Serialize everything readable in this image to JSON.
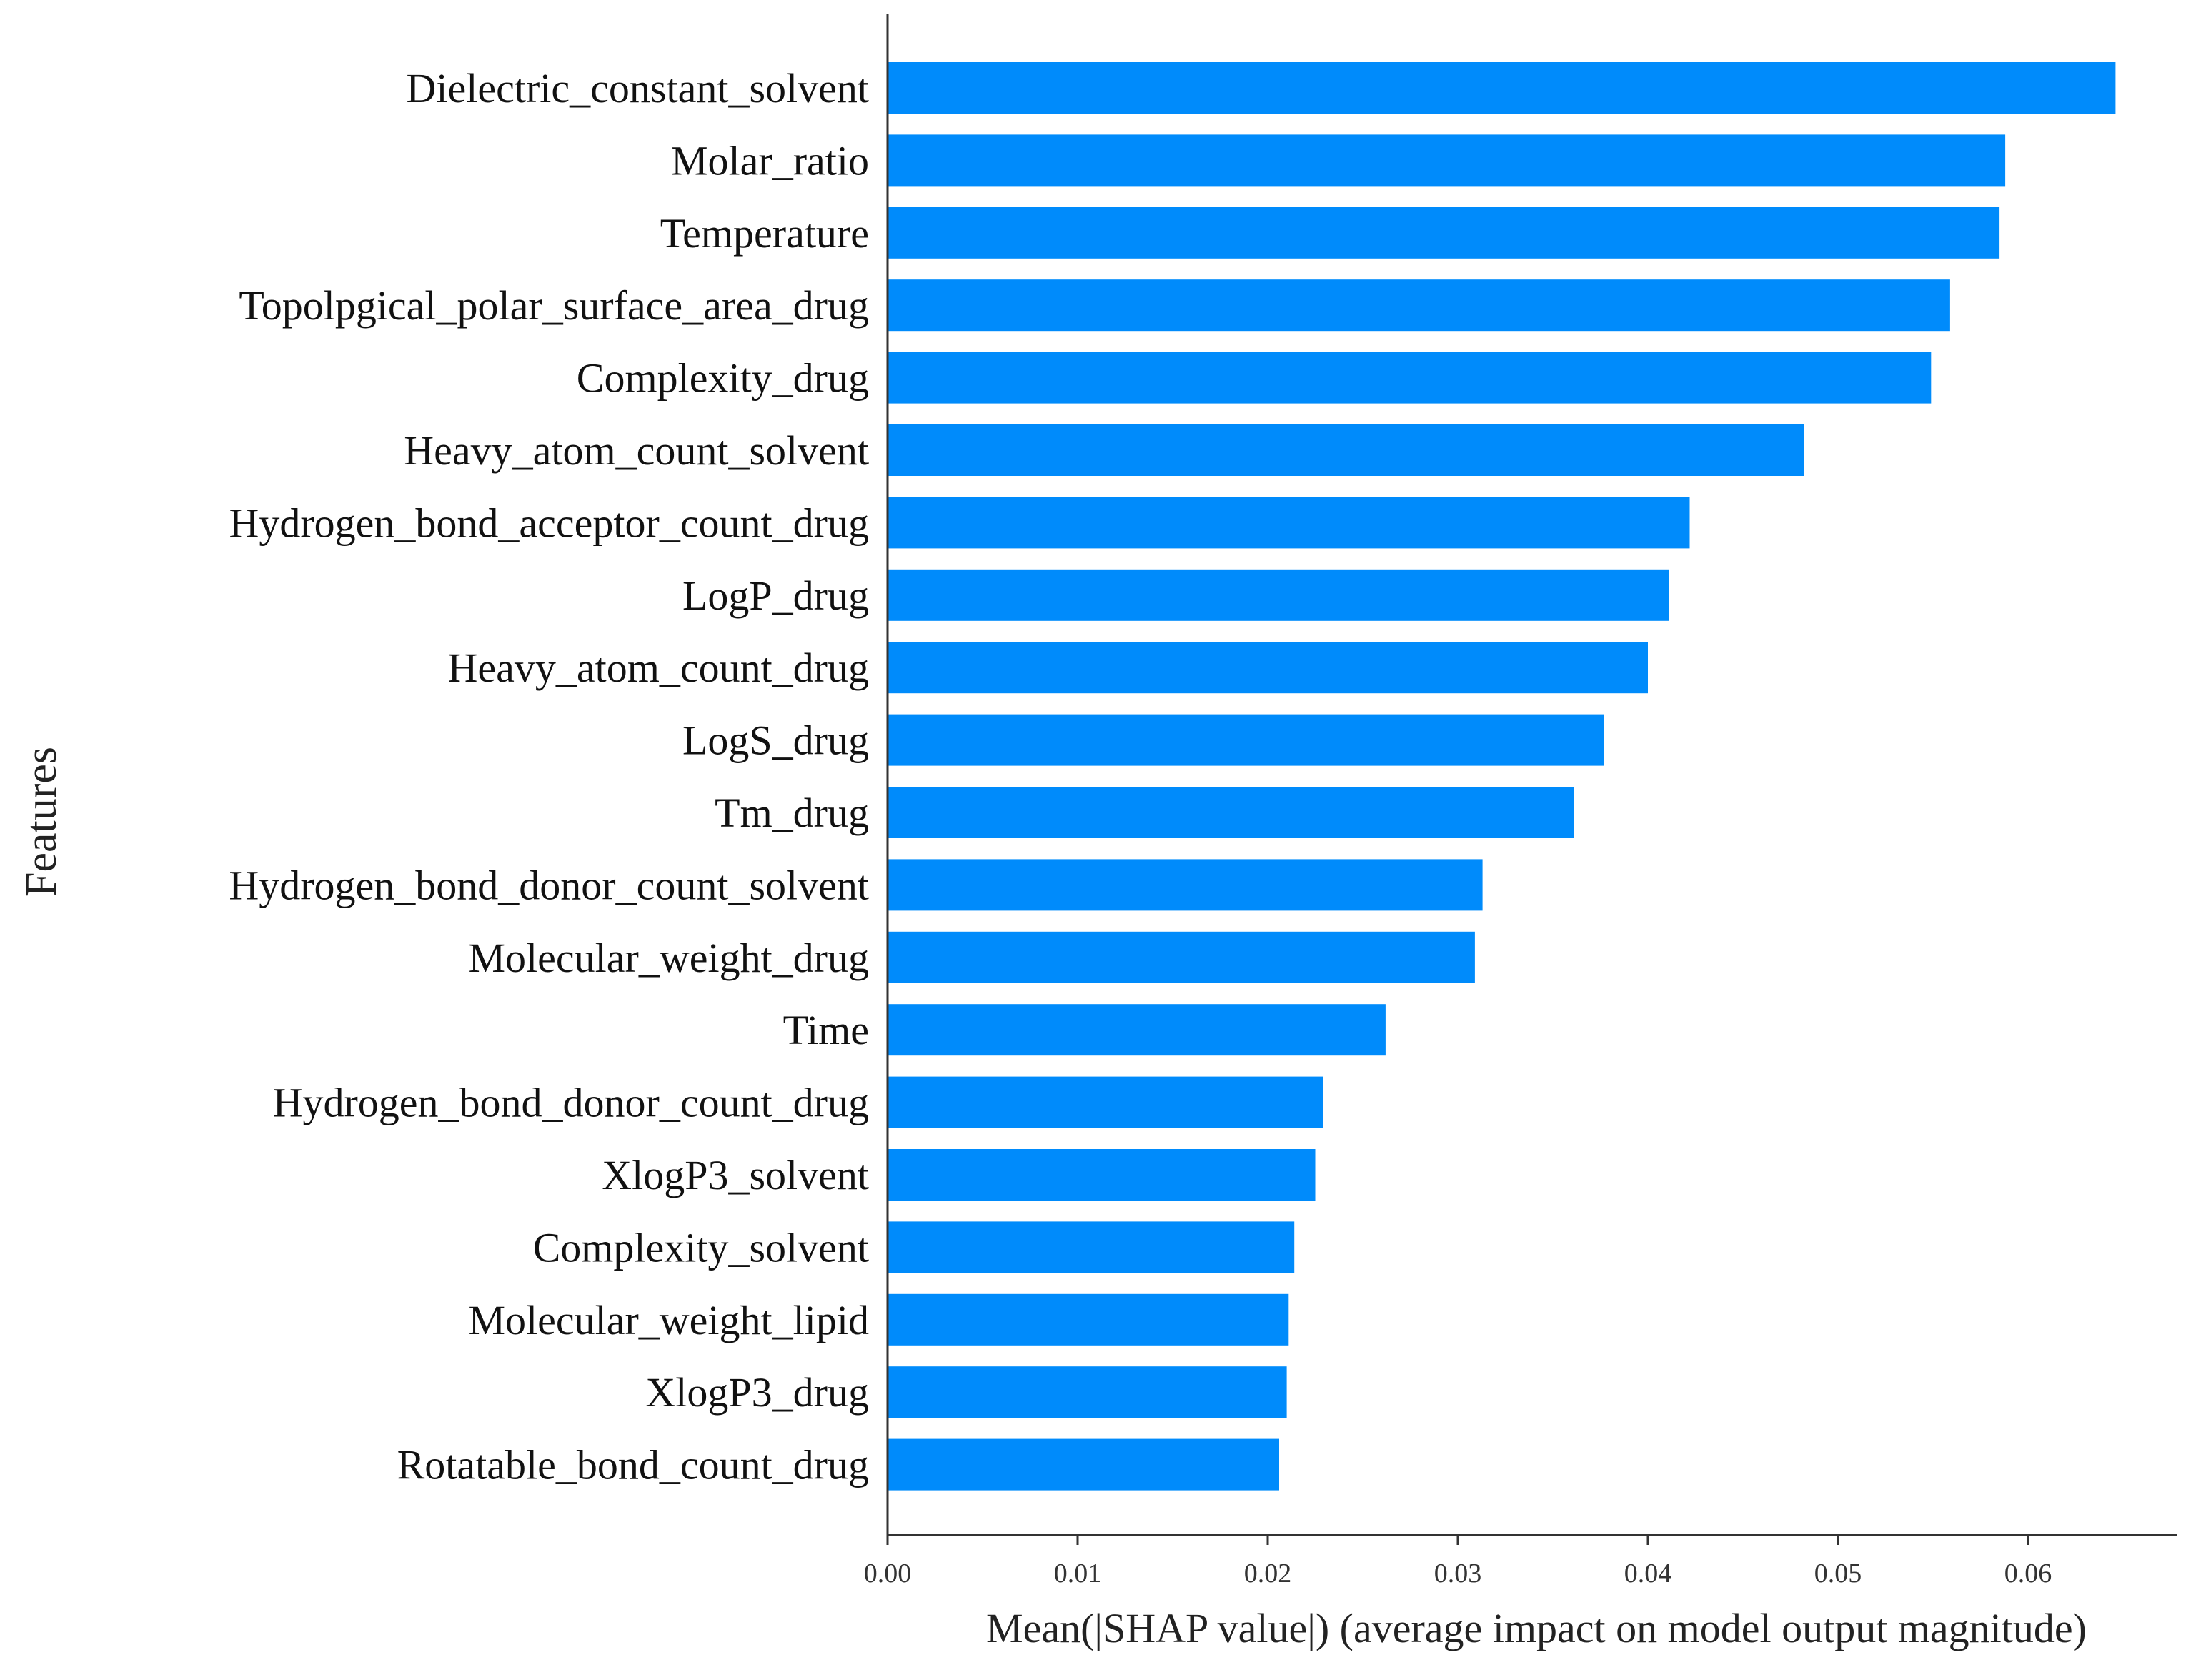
{
  "chart_data": {
    "type": "bar",
    "orientation": "horizontal",
    "title": "",
    "xlabel": "Mean(|SHAP value|) (average impact on model output magnitude)",
    "ylabel": "Features",
    "xlim": [
      0.0,
      0.068
    ],
    "xticks": [
      0.0,
      0.01,
      0.02,
      0.03,
      0.04,
      0.05,
      0.06
    ],
    "xtick_labels": [
      "0.00",
      "0.01",
      "0.02",
      "0.03",
      "0.04",
      "0.05",
      "0.06"
    ],
    "grid": false,
    "bar_color": "#008bfb",
    "categories": [
      "Dielectric_constant_solvent",
      "Molar_ratio",
      "Temperature",
      "Topolpgical_polar_surface_area_drug",
      "Complexity_drug",
      "Heavy_atom_count_solvent",
      "Hydrogen_bond_acceptor_count_drug",
      "LogP_drug",
      "Heavy_atom_count_drug",
      "LogS_drug",
      "Tm_drug",
      "Hydrogen_bond_donor_count_solvent",
      "Molecular_weight_drug",
      "Time",
      "Hydrogen_bond_donor_count_drug",
      "XlogP3_solvent",
      "Complexity_solvent",
      "Molecular_weight_lipid",
      "XlogP3_drug",
      "Rotatable_bond_count_drug"
    ],
    "values": [
      0.0646,
      0.0588,
      0.0585,
      0.0559,
      0.0549,
      0.0482,
      0.0422,
      0.0411,
      0.04,
      0.0377,
      0.0361,
      0.0313,
      0.0309,
      0.0262,
      0.0229,
      0.0225,
      0.0214,
      0.0211,
      0.021,
      0.0206
    ]
  }
}
